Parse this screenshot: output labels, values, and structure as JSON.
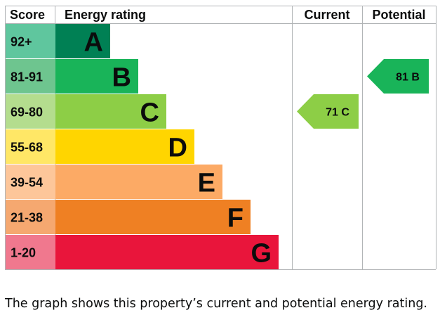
{
  "header": {
    "score": "Score",
    "energy_rating": "Energy rating",
    "current": "Current",
    "potential": "Potential"
  },
  "chart_data": {
    "type": "bar",
    "title": "",
    "bands": [
      {
        "letter": "A",
        "range": "92+",
        "band_color": "#008054",
        "score_color": "#5fc69e",
        "length": 1
      },
      {
        "letter": "B",
        "range": "81-91",
        "band_color": "#19b459",
        "score_color": "#6ec58f",
        "length": 2
      },
      {
        "letter": "C",
        "range": "69-80",
        "band_color": "#8dce46",
        "score_color": "#b4dd8e",
        "length": 3
      },
      {
        "letter": "D",
        "range": "55-68",
        "band_color": "#ffd500",
        "score_color": "#ffe766",
        "length": 4
      },
      {
        "letter": "E",
        "range": "39-54",
        "band_color": "#fcaa65",
        "score_color": "#fdc69a",
        "length": 5
      },
      {
        "letter": "F",
        "range": "21-38",
        "band_color": "#ef8023",
        "score_color": "#f5a870",
        "length": 6
      },
      {
        "letter": "G",
        "range": "1-20",
        "band_color": "#e9153b",
        "score_color": "#f0788e",
        "length": 7
      }
    ],
    "current": {
      "value": 71,
      "letter": "C",
      "label": "71  C",
      "color": "#8dce46"
    },
    "potential": {
      "value": 81,
      "letter": "B",
      "label": "81  B",
      "color": "#19b459"
    }
  },
  "caption": "The graph shows this property’s current and potential energy rating."
}
